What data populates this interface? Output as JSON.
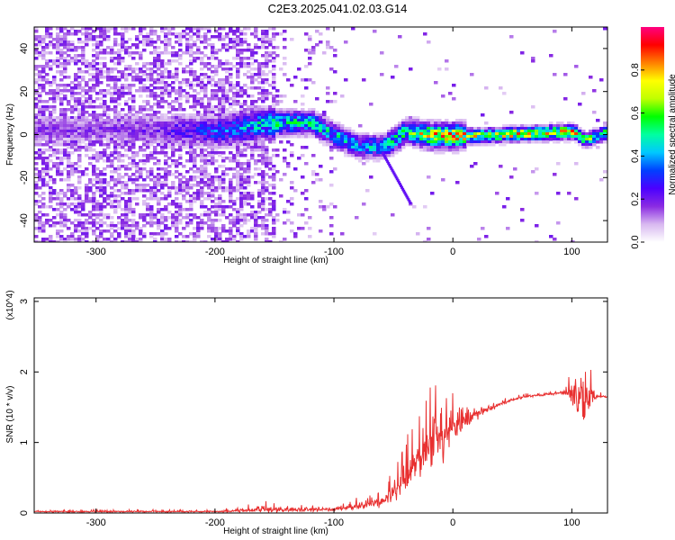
{
  "page": {
    "title": "C2E3.2025.041.02.03.G14"
  },
  "chart_data": [
    {
      "type": "heatmap",
      "xlabel": "Height of straight line (km)",
      "ylabel": "Frequency (Hz)",
      "xlim": [
        -352,
        130
      ],
      "ylim": [
        -50,
        50
      ],
      "xticks": [
        -300,
        -200,
        -100,
        0,
        100
      ],
      "yticks": [
        -40,
        -20,
        0,
        20,
        40
      ],
      "colorbar": {
        "label": "Normalized spectral amplitude",
        "range": [
          0,
          1
        ],
        "ticks": [
          0.0,
          0.2,
          0.4,
          0.6,
          0.8
        ],
        "tick_labels": [
          "0.0",
          "0.2",
          "0.4",
          "0.6",
          "0.8"
        ],
        "colors": [
          "#ffffff",
          "#d8b8f0",
          "#8a2be2",
          "#4b00ff",
          "#0040ff",
          "#00c8ff",
          "#00ffa0",
          "#00ff00",
          "#c0ff00",
          "#ffff00",
          "#ff8000",
          "#ff0000",
          "#ff0080"
        ]
      },
      "ridge": {
        "x": [
          -352,
          -300,
          -250,
          -200,
          -150,
          -120,
          -100,
          -80,
          -60,
          -40,
          -20,
          0,
          20,
          60,
          100,
          110,
          130
        ],
        "freq": [
          3,
          3,
          3,
          2,
          6,
          6,
          0,
          -5,
          -5,
          2,
          0,
          0,
          0,
          1,
          2,
          -2,
          2
        ],
        "amp": [
          0.15,
          0.15,
          0.18,
          0.3,
          0.45,
          0.45,
          0.4,
          0.35,
          0.4,
          0.5,
          0.7,
          0.75,
          0.6,
          0.7,
          0.7,
          0.5,
          0.55
        ]
      }
    },
    {
      "type": "line",
      "xlabel": "Height of straight line (km)",
      "ylabel": "SNR (10 * v/v)",
      "y_multiplier": "(x10^4)",
      "xlim": [
        -352,
        130
      ],
      "ylim": [
        0,
        3.05
      ],
      "xticks": [
        -300,
        -200,
        -100,
        0,
        100
      ],
      "yticks": [
        0,
        1,
        2,
        3
      ],
      "color": "#e83030",
      "envelope": {
        "x": [
          -352,
          -200,
          -160,
          -100,
          -60,
          -45,
          -30,
          -20,
          -10,
          0,
          20,
          40,
          60,
          90,
          100,
          105,
          110,
          113,
          120,
          130
        ],
        "y": [
          0.02,
          0.02,
          0.05,
          0.05,
          0.15,
          0.35,
          0.7,
          0.9,
          1.1,
          1.25,
          1.4,
          1.55,
          1.65,
          1.7,
          1.7,
          1.65,
          1.6,
          1.7,
          1.65,
          1.65
        ],
        "spread": [
          0.02,
          0.02,
          0.08,
          0.05,
          0.12,
          0.3,
          0.55,
          0.7,
          0.6,
          0.5,
          0.15,
          0.05,
          0.03,
          0.03,
          0.25,
          0.6,
          1.1,
          0.7,
          0.05,
          0.03
        ]
      }
    }
  ]
}
